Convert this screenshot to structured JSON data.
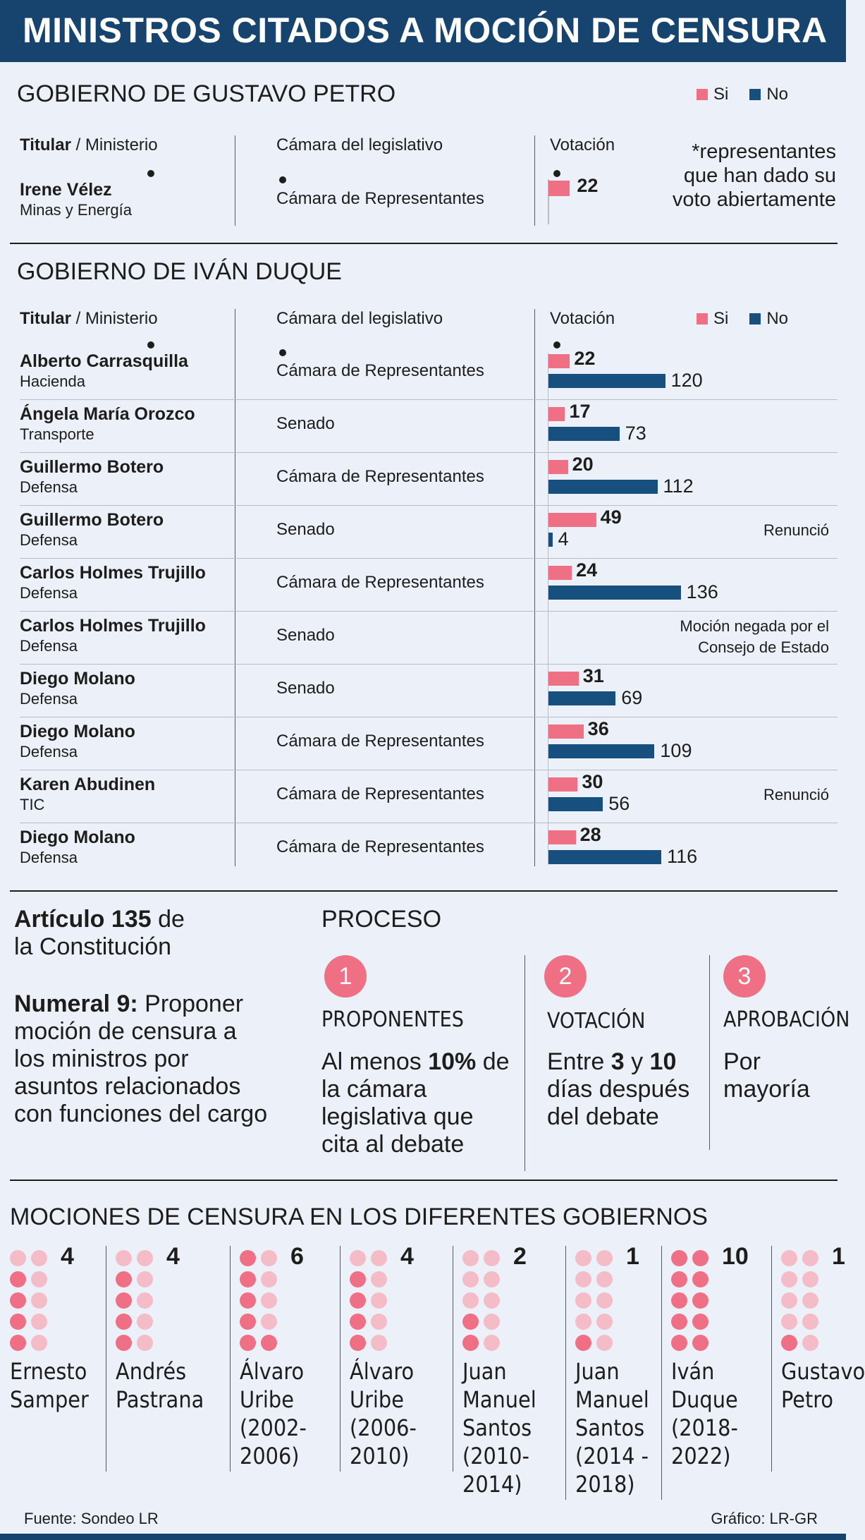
{
  "title": "MINISTROS CITADOS A MOCIÓN DE CENSURA",
  "legend": {
    "si": "Si",
    "no": "No"
  },
  "columns": {
    "titular": "Titular",
    "ministerio": " / Ministerio",
    "camara": "Cámara del legislativo",
    "votacion": "Votación"
  },
  "petro": {
    "heading": "GOBIERNO DE GUSTAVO PETRO",
    "name": "Irene Vélez",
    "ministry": "Minas y Energía",
    "camara": "Cámara de Representantes",
    "si": 22,
    "note": "*representantes que han dado su voto abiertamente"
  },
  "duque": {
    "heading": "GOBIERNO DE IVÁN DUQUE"
  },
  "chart_data": {
    "type": "bar",
    "title": "GOBIERNO DE IVÁN DUQUE",
    "series_names": [
      "Si",
      "No"
    ],
    "colors": {
      "si": "#ef6f85",
      "no": "#17507f"
    },
    "rows": [
      {
        "name": "Alberto Carrasquilla",
        "ministry": "Hacienda",
        "camara": "Cámara de Representantes",
        "si": 22,
        "no": 120,
        "note": ""
      },
      {
        "name": "Ángela María Orozco",
        "ministry": "Transporte",
        "camara": "Senado",
        "si": 17,
        "no": 73,
        "note": ""
      },
      {
        "name": "Guillermo Botero",
        "ministry": "Defensa",
        "camara": "Cámara de Representantes",
        "si": 20,
        "no": 112,
        "note": ""
      },
      {
        "name": "Guillermo Botero",
        "ministry": "Defensa",
        "camara": "Senado",
        "si": 49,
        "no": 4,
        "note": "Renunció"
      },
      {
        "name": "Carlos Holmes Trujillo",
        "ministry": "Defensa",
        "camara": "Cámara de Representantes",
        "si": 24,
        "no": 136,
        "note": ""
      },
      {
        "name": "Carlos Holmes Trujillo",
        "ministry": "Defensa",
        "camara": "Senado",
        "si": null,
        "no": null,
        "note": "Moción negada por el Consejo de Estado"
      },
      {
        "name": "Diego Molano",
        "ministry": "Defensa",
        "camara": "Senado",
        "si": 31,
        "no": 69,
        "note": ""
      },
      {
        "name": "Diego Molano",
        "ministry": "Defensa",
        "camara": "Cámara de Representantes",
        "si": 36,
        "no": 109,
        "note": ""
      },
      {
        "name": "Karen Abudinen",
        "ministry": "TIC",
        "camara": "Cámara de Representantes",
        "si": 30,
        "no": 56,
        "note": "Renunció"
      },
      {
        "name": "Diego Molano",
        "ministry": "Defensa",
        "camara": "Cámara de Representantes",
        "si": 28,
        "no": 116,
        "note": ""
      }
    ],
    "governments": [
      {
        "name": "Ernesto Samper",
        "count": 4
      },
      {
        "name": "Andrés Pastrana",
        "count": 4
      },
      {
        "name": "Álvaro Uribe (2002-2006)",
        "count": 6
      },
      {
        "name": "Álvaro Uribe (2006-2010)",
        "count": 4
      },
      {
        "name": "Juan Manuel Santos (2010-2014)",
        "count": 2
      },
      {
        "name": "Juan Manuel Santos (2014-2018)",
        "count": 1
      },
      {
        "name": "Iván Duque (2018-2022)",
        "count": 10
      },
      {
        "name": "Gustavo Petro",
        "count": 1
      }
    ]
  },
  "articulo": {
    "title_bold": "Artículo 135",
    "title_rest": " de",
    "line2": "la Constitución",
    "numeral_bold": "Numeral 9:",
    "numeral_rest": " Proponer moción de censura a los ministros por asuntos relacionados con funciones del cargo"
  },
  "proceso": {
    "heading": "PROCESO",
    "steps": [
      {
        "num": "1",
        "title": "PROPONENTES",
        "text_a": "Al menos ",
        "bold_a": "10%",
        "text_b": " de la cámara legislativa que cita al debate"
      },
      {
        "num": "2",
        "title": "VOTACIÓN",
        "text_a": "Entre ",
        "bold_a": "3",
        "text_b": " y ",
        "bold_b": "10",
        "text_c": " días después del debate"
      },
      {
        "num": "3",
        "title": "APROBACIÓN",
        "text_a": "Por mayoría"
      }
    ]
  },
  "mociones": {
    "heading": "MOCIONES DE CENSURA EN LOS DIFERENTES GOBIERNOS",
    "names_lines": [
      [
        "Ernesto",
        "Samper"
      ],
      [
        "Andrés",
        "Pastrana"
      ],
      [
        "Álvaro",
        "Uribe",
        "(2002-",
        "2006)"
      ],
      [
        "Álvaro",
        "Uribe",
        "(2006-",
        "2010)"
      ],
      [
        "Juan",
        "Manuel",
        "Santos",
        "(2010-",
        "2014)"
      ],
      [
        "Juan",
        "Manuel",
        "Santos",
        "(2014 -",
        "2018)"
      ],
      [
        "Iván",
        "Duque",
        "(2018-",
        "2022)"
      ],
      [
        "Gustavo",
        "Petro"
      ]
    ]
  },
  "footer": {
    "source": "Fuente: Sondeo LR",
    "credit": "Gráfico: LR-GR"
  }
}
